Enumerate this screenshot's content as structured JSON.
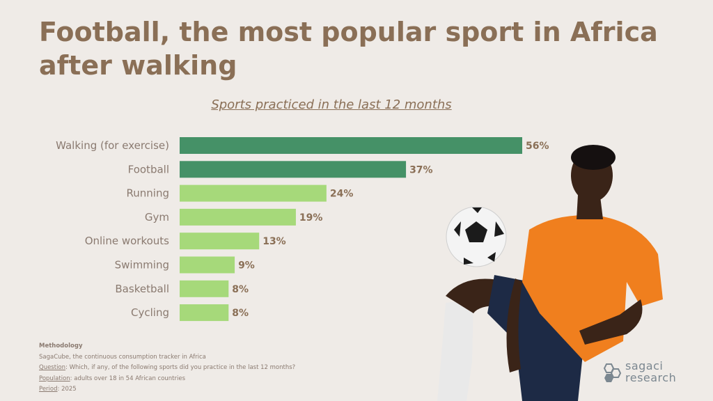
{
  "title": "Football, the most popular sport in Africa after walking",
  "chart_data": {
    "type": "bar",
    "orientation": "horizontal",
    "title": "Sports practiced in the last 12 months",
    "categories": [
      "Walking (for exercise)",
      "Football",
      "Running",
      "Gym",
      "Online workouts",
      "Swimming",
      "Basketball",
      "Cycling"
    ],
    "values": [
      56,
      37,
      24,
      19,
      13,
      9,
      8,
      8
    ],
    "value_labels": [
      "56%",
      "37%",
      "24%",
      "19%",
      "13%",
      "9%",
      "8%",
      "8%"
    ],
    "unit": "%",
    "highlight_color": "#459167",
    "bar_color": "#a6d97a",
    "highlighted_categories": [
      "Walking (for exercise)",
      "Football"
    ]
  },
  "methodology": {
    "heading": "Methodology",
    "line1": "SagaCube, the continuous consumption tracker in Africa",
    "question_label": "Question",
    "question_text": ": Which, if any, of the following sports did you practice in the last 12 months?",
    "population_label": "Population",
    "population_text": ":  adults over 18 in 54 African countries",
    "period_label": "Period",
    "period_text": ": 2025"
  },
  "logo": {
    "line1": "sagaci",
    "line2": "research"
  },
  "colors": {
    "background": "#efebe7",
    "title": "#8a6f56",
    "jersey": "#f07f1e",
    "shorts": "#1d2a45"
  }
}
